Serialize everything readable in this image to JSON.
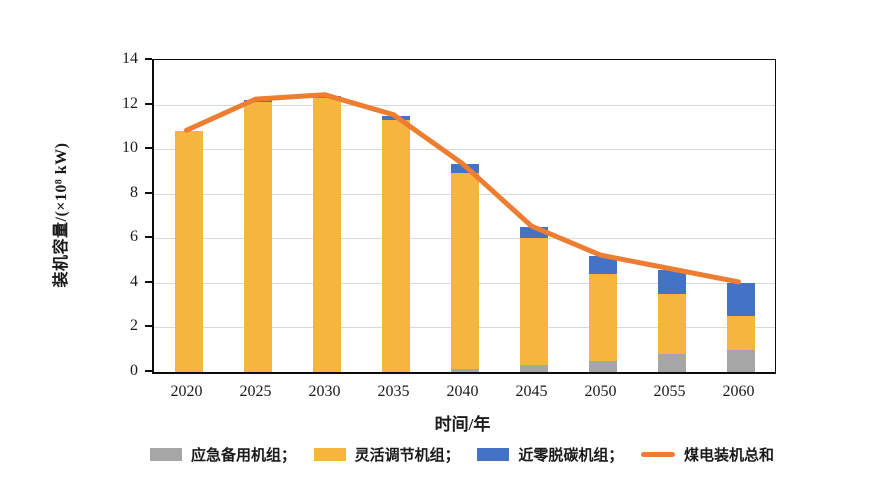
{
  "chart_data": {
    "type": "bar",
    "stacked": true,
    "title": "",
    "xlabel": "时间/年",
    "ylabel": "装机容量/(×10⁸ kW)",
    "categories": [
      "2020",
      "2025",
      "2030",
      "2035",
      "2040",
      "2045",
      "2050",
      "2055",
      "2060"
    ],
    "series": [
      {
        "name": "应急备用机组",
        "type": "bar",
        "color": "#A6A6A6",
        "values": [
          0,
          0,
          0,
          0,
          0.15,
          0.3,
          0.5,
          0.8,
          1.0
        ]
      },
      {
        "name": "灵活调节机组",
        "type": "bar",
        "color": "#F6B53E",
        "values": [
          10.8,
          12.1,
          12.3,
          11.3,
          8.8,
          5.7,
          3.9,
          2.7,
          1.5
        ]
      },
      {
        "name": "近零脱碳机组",
        "type": "bar",
        "color": "#4472C4",
        "values": [
          0,
          0.1,
          0.1,
          0.2,
          0.4,
          0.5,
          0.8,
          1.1,
          1.5
        ]
      },
      {
        "name": "煤电装机总和",
        "type": "line",
        "color": "#ED7D31",
        "values": [
          10.8,
          12.2,
          12.4,
          11.5,
          9.3,
          6.5,
          5.2,
          4.6,
          4.0
        ]
      }
    ],
    "ylim": [
      0,
      14
    ],
    "yticks": [
      0,
      2,
      4,
      6,
      8,
      10,
      12,
      14
    ],
    "grid": "horizontal",
    "legend_position": "bottom"
  },
  "legend": {
    "items": [
      {
        "label": "应急备用机组；",
        "swatch": "box",
        "color": "#A6A6A6"
      },
      {
        "label": "灵活调节机组；",
        "swatch": "box",
        "color": "#F6B53E"
      },
      {
        "label": "近零脱碳机组；",
        "swatch": "box",
        "color": "#4472C4"
      },
      {
        "label": "煤电装机总和",
        "swatch": "line",
        "color": "#ED7D31"
      }
    ]
  },
  "colors": {
    "background": "#FFFFFF",
    "grid": "#D9D9D9",
    "axis": "#0D0D0D",
    "bar_gray": "#A6A6A6",
    "bar_yellow": "#F6B53E",
    "bar_blue": "#4472C4",
    "line_orange": "#ED7D31"
  }
}
